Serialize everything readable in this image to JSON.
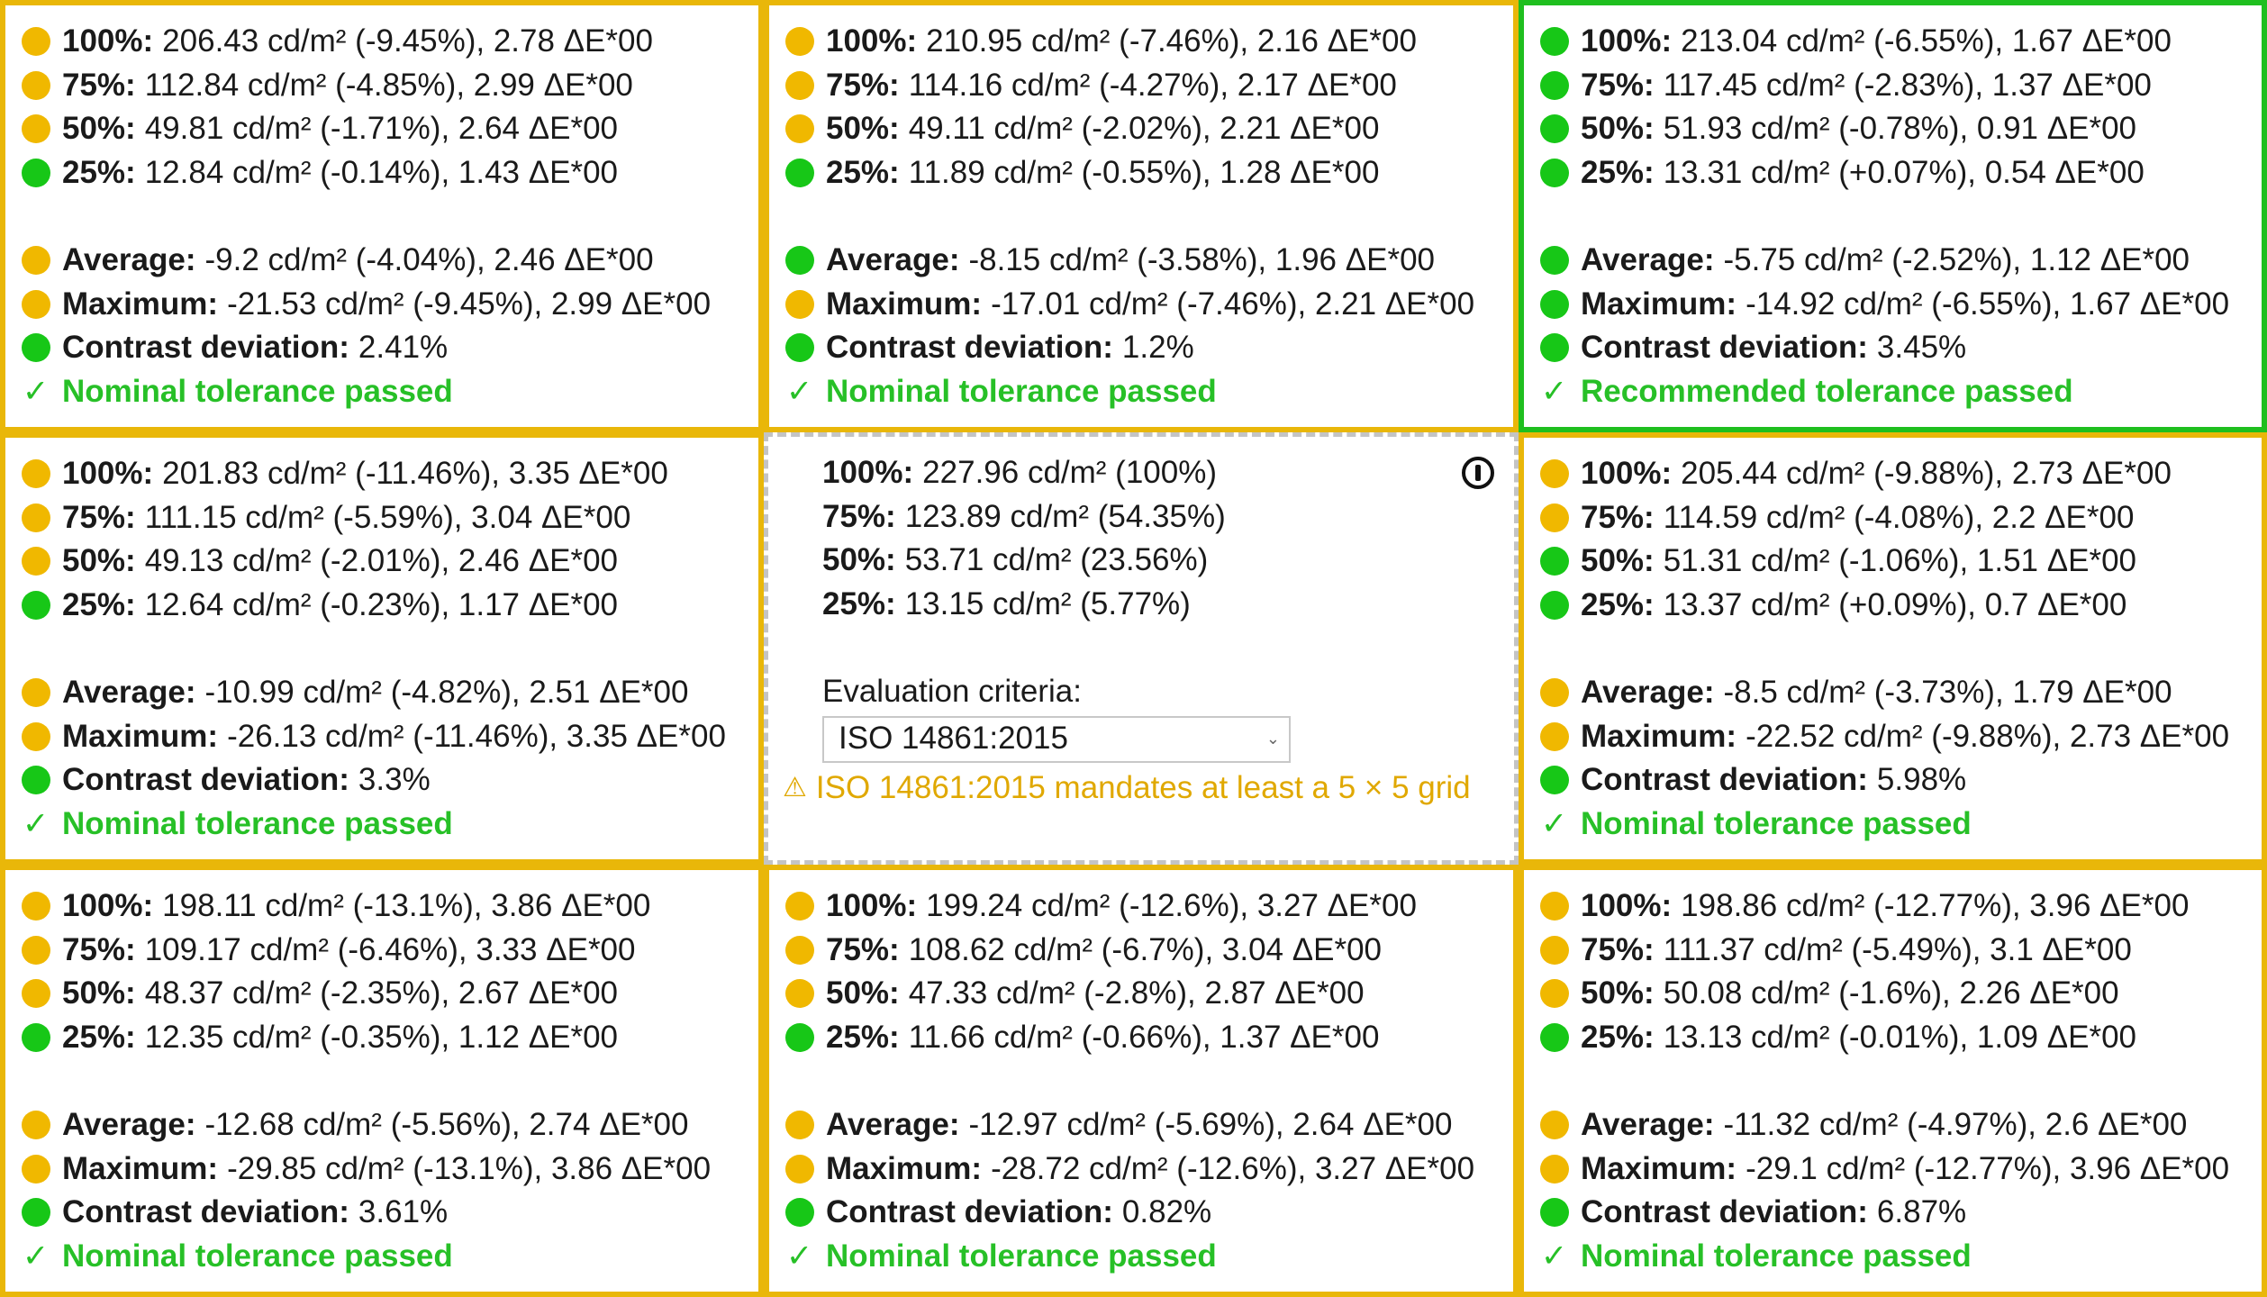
{
  "colors": {
    "yellow": "#f0b800",
    "green": "#17c717",
    "border_yellow": "#e9b709",
    "border_green": "#1fbf1f"
  },
  "labels": {
    "p100": "100%:",
    "p75": "75%:",
    "p50": "50%:",
    "p25": "25%:",
    "average": "Average:",
    "maximum": "Maximum:",
    "contrast": "Contrast deviation:"
  },
  "cells": [
    {
      "status": "yellow",
      "r100": {
        "dot": "yellow",
        "value": "206.43 cd/m² (-9.45%), 2.78 ΔE*00"
      },
      "r75": {
        "dot": "yellow",
        "value": "112.84 cd/m² (-4.85%), 2.99 ΔE*00"
      },
      "r50": {
        "dot": "yellow",
        "value": "49.81 cd/m² (-1.71%), 2.64 ΔE*00"
      },
      "r25": {
        "dot": "green",
        "value": "12.84 cd/m² (-0.14%), 1.43 ΔE*00"
      },
      "average": {
        "dot": "yellow",
        "value": "-9.2 cd/m² (-4.04%), 2.46 ΔE*00"
      },
      "maximum": {
        "dot": "yellow",
        "value": "-21.53 cd/m² (-9.45%), 2.99 ΔE*00"
      },
      "contrast": {
        "dot": "green",
        "value": "2.41%"
      },
      "result": "Nominal tolerance passed"
    },
    {
      "status": "yellow",
      "r100": {
        "dot": "yellow",
        "value": "210.95 cd/m² (-7.46%), 2.16 ΔE*00"
      },
      "r75": {
        "dot": "yellow",
        "value": "114.16 cd/m² (-4.27%), 2.17 ΔE*00"
      },
      "r50": {
        "dot": "yellow",
        "value": "49.11 cd/m² (-2.02%), 2.21 ΔE*00"
      },
      "r25": {
        "dot": "green",
        "value": "11.89 cd/m² (-0.55%), 1.28 ΔE*00"
      },
      "average": {
        "dot": "green",
        "value": "-8.15 cd/m² (-3.58%), 1.96 ΔE*00"
      },
      "maximum": {
        "dot": "yellow",
        "value": "-17.01 cd/m² (-7.46%), 2.21 ΔE*00"
      },
      "contrast": {
        "dot": "green",
        "value": "1.2%"
      },
      "result": "Nominal tolerance passed"
    },
    {
      "status": "green",
      "r100": {
        "dot": "green",
        "value": "213.04 cd/m² (-6.55%), 1.67 ΔE*00"
      },
      "r75": {
        "dot": "green",
        "value": "117.45 cd/m² (-2.83%), 1.37 ΔE*00"
      },
      "r50": {
        "dot": "green",
        "value": "51.93 cd/m² (-0.78%), 0.91 ΔE*00"
      },
      "r25": {
        "dot": "green",
        "value": "13.31 cd/m² (+0.07%), 0.54 ΔE*00"
      },
      "average": {
        "dot": "green",
        "value": "-5.75 cd/m² (-2.52%), 1.12 ΔE*00"
      },
      "maximum": {
        "dot": "green",
        "value": "-14.92 cd/m² (-6.55%), 1.67 ΔE*00"
      },
      "contrast": {
        "dot": "green",
        "value": "3.45%"
      },
      "result": "Recommended tolerance passed"
    },
    {
      "status": "yellow",
      "r100": {
        "dot": "yellow",
        "value": "201.83 cd/m² (-11.46%), 3.35 ΔE*00"
      },
      "r75": {
        "dot": "yellow",
        "value": "111.15 cd/m² (-5.59%), 3.04 ΔE*00"
      },
      "r50": {
        "dot": "yellow",
        "value": "49.13 cd/m² (-2.01%), 2.46 ΔE*00"
      },
      "r25": {
        "dot": "green",
        "value": "12.64 cd/m² (-0.23%), 1.17 ΔE*00"
      },
      "average": {
        "dot": "yellow",
        "value": "-10.99 cd/m² (-4.82%), 2.51 ΔE*00"
      },
      "maximum": {
        "dot": "yellow",
        "value": "-26.13 cd/m² (-11.46%), 3.35 ΔE*00"
      },
      "contrast": {
        "dot": "green",
        "value": "3.3%"
      },
      "result": "Nominal tolerance passed"
    },
    {
      "status": "center"
    },
    {
      "status": "yellow",
      "r100": {
        "dot": "yellow",
        "value": "205.44 cd/m² (-9.88%), 2.73 ΔE*00"
      },
      "r75": {
        "dot": "yellow",
        "value": "114.59 cd/m² (-4.08%), 2.2 ΔE*00"
      },
      "r50": {
        "dot": "green",
        "value": "51.31 cd/m² (-1.06%), 1.51 ΔE*00"
      },
      "r25": {
        "dot": "green",
        "value": "13.37 cd/m² (+0.09%), 0.7 ΔE*00"
      },
      "average": {
        "dot": "yellow",
        "value": "-8.5 cd/m² (-3.73%), 1.79 ΔE*00"
      },
      "maximum": {
        "dot": "yellow",
        "value": "-22.52 cd/m² (-9.88%), 2.73 ΔE*00"
      },
      "contrast": {
        "dot": "green",
        "value": "5.98%"
      },
      "result": "Nominal tolerance passed"
    },
    {
      "status": "yellow",
      "r100": {
        "dot": "yellow",
        "value": "198.11 cd/m² (-13.1%), 3.86 ΔE*00"
      },
      "r75": {
        "dot": "yellow",
        "value": "109.17 cd/m² (-6.46%), 3.33 ΔE*00"
      },
      "r50": {
        "dot": "yellow",
        "value": "48.37 cd/m² (-2.35%), 2.67 ΔE*00"
      },
      "r25": {
        "dot": "green",
        "value": "12.35 cd/m² (-0.35%), 1.12 ΔE*00"
      },
      "average": {
        "dot": "yellow",
        "value": "-12.68 cd/m² (-5.56%), 2.74 ΔE*00"
      },
      "maximum": {
        "dot": "yellow",
        "value": "-29.85 cd/m² (-13.1%), 3.86 ΔE*00"
      },
      "contrast": {
        "dot": "green",
        "value": "3.61%"
      },
      "result": "Nominal tolerance passed"
    },
    {
      "status": "yellow",
      "r100": {
        "dot": "yellow",
        "value": "199.24 cd/m² (-12.6%), 3.27 ΔE*00"
      },
      "r75": {
        "dot": "yellow",
        "value": "108.62 cd/m² (-6.7%), 3.04 ΔE*00"
      },
      "r50": {
        "dot": "yellow",
        "value": "47.33 cd/m² (-2.8%), 2.87 ΔE*00"
      },
      "r25": {
        "dot": "green",
        "value": "11.66 cd/m² (-0.66%), 1.37 ΔE*00"
      },
      "average": {
        "dot": "yellow",
        "value": "-12.97 cd/m² (-5.69%), 2.64 ΔE*00"
      },
      "maximum": {
        "dot": "yellow",
        "value": "-28.72 cd/m² (-12.6%), 3.27 ΔE*00"
      },
      "contrast": {
        "dot": "green",
        "value": "0.82%"
      },
      "result": "Nominal tolerance passed"
    },
    {
      "status": "yellow",
      "r100": {
        "dot": "yellow",
        "value": "198.86 cd/m² (-12.77%), 3.96 ΔE*00"
      },
      "r75": {
        "dot": "yellow",
        "value": "111.37 cd/m² (-5.49%), 3.1 ΔE*00"
      },
      "r50": {
        "dot": "yellow",
        "value": "50.08 cd/m² (-1.6%), 2.26 ΔE*00"
      },
      "r25": {
        "dot": "green",
        "value": "13.13 cd/m² (-0.01%), 1.09 ΔE*00"
      },
      "average": {
        "dot": "yellow",
        "value": "-11.32 cd/m² (-4.97%), 2.6 ΔE*00"
      },
      "maximum": {
        "dot": "yellow",
        "value": "-29.1 cd/m² (-12.77%), 3.96 ΔE*00"
      },
      "contrast": {
        "dot": "green",
        "value": "6.87%"
      },
      "result": "Nominal tolerance passed"
    }
  ],
  "center": {
    "r100": "227.96 cd/m² (100%)",
    "r75": "123.89 cd/m² (54.35%)",
    "r50": "53.71 cd/m² (23.56%)",
    "r25": "13.15 cd/m² (5.77%)",
    "criteria_label": "Evaluation criteria:",
    "criteria_value": "ISO 14861:2015",
    "warning": "ISO 14861:2015 mandates at least a 5 × 5 grid",
    "info_icon": "info-icon"
  },
  "icons": {
    "check": "✓",
    "warning": "⚠"
  }
}
